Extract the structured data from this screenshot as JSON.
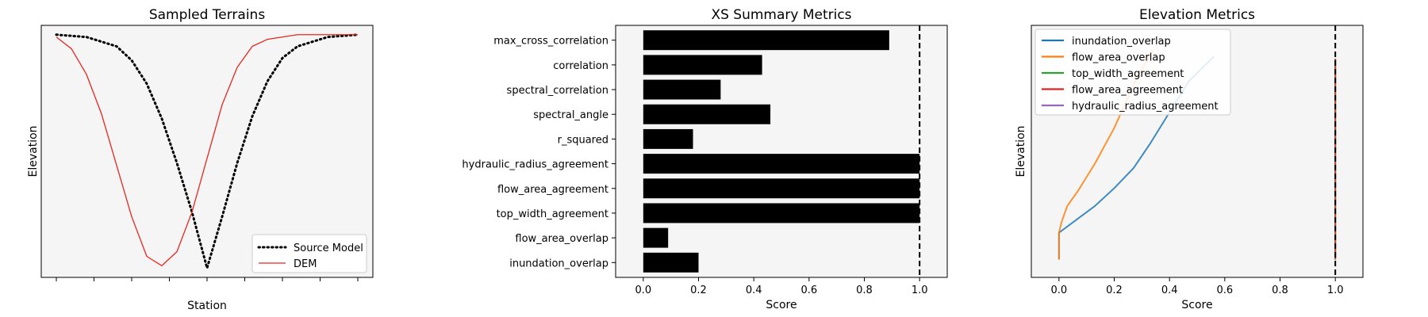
{
  "chart_data": [
    {
      "type": "line",
      "title": "Sampled Terrains",
      "xlabel": "Station",
      "ylabel": "Elevation",
      "x_ticks_labeled": false,
      "y_ticks_labeled": false,
      "xlim": [
        -0.05,
        1.05
      ],
      "ylim": [
        -0.04,
        1.04
      ],
      "legend": "lower-right",
      "series": [
        {
          "name": "Source Model",
          "color": "#000000",
          "style": "dotted",
          "x": [
            0,
            0.1,
            0.2,
            0.25,
            0.3,
            0.35,
            0.4,
            0.45,
            0.5,
            0.55,
            0.6,
            0.65,
            0.7,
            0.75,
            0.8,
            0.9,
            1.0
          ],
          "y": [
            1.0,
            0.99,
            0.95,
            0.89,
            0.79,
            0.64,
            0.45,
            0.24,
            0.0,
            0.22,
            0.45,
            0.65,
            0.8,
            0.9,
            0.95,
            0.99,
            1.0
          ]
        },
        {
          "name": "DEM",
          "color": "#e8261f",
          "style": "solid",
          "x": [
            0,
            0.05,
            0.1,
            0.15,
            0.2,
            0.25,
            0.3,
            0.35,
            0.4,
            0.45,
            0.5,
            0.55,
            0.6,
            0.65,
            0.7,
            0.8,
            0.9,
            1.0
          ],
          "y": [
            0.99,
            0.94,
            0.83,
            0.66,
            0.44,
            0.22,
            0.05,
            0.01,
            0.07,
            0.24,
            0.47,
            0.7,
            0.86,
            0.95,
            0.98,
            1.0,
            1.0,
            1.0
          ]
        }
      ]
    },
    {
      "type": "bar",
      "orientation": "horizontal",
      "title": "XS Summary Metrics",
      "xlabel": "Score",
      "ylabel": "",
      "xlim": [
        -0.1,
        1.1
      ],
      "x_ticks": [
        "0.0",
        "0.2",
        "0.4",
        "0.6",
        "0.8",
        "1.0"
      ],
      "reference_line": 1.0,
      "bar_color": "#000000",
      "categories": [
        "inundation_overlap",
        "flow_area_overlap",
        "top_width_agreement",
        "flow_area_agreement",
        "hydraulic_radius_agreement",
        "r_squared",
        "spectral_angle",
        "spectral_correlation",
        "correlation",
        "max_cross_correlation"
      ],
      "values": [
        0.2,
        0.09,
        1.0,
        1.0,
        1.0,
        0.18,
        0.46,
        0.28,
        0.43,
        0.89
      ]
    },
    {
      "type": "line",
      "title": "Elevation Metrics",
      "xlabel": "Score",
      "ylabel": "Elevation",
      "xlim": [
        -0.1,
        1.1
      ],
      "ylim": [
        -0.08,
        1.05
      ],
      "x_ticks": [
        "0.0",
        "0.2",
        "0.4",
        "0.6",
        "0.8",
        "1.0"
      ],
      "y_ticks_labeled": false,
      "reference_line": 1.0,
      "legend": "top-left",
      "series": [
        {
          "name": "inundation_overlap",
          "color": "#1f77b4",
          "x": [
            0,
            0,
            0.13,
            0.2,
            0.27,
            0.33,
            0.4,
            0.47,
            0.56
          ],
          "y": [
            0,
            0.12,
            0.24,
            0.32,
            0.41,
            0.52,
            0.66,
            0.8,
            0.91
          ]
        },
        {
          "name": "flow_area_overlap",
          "color": "#ff7f0e",
          "x": [
            0,
            0,
            0.01,
            0.03,
            0.07,
            0.13,
            0.2,
            0.28,
            0.34
          ],
          "y": [
            0,
            0.12,
            0.17,
            0.24,
            0.31,
            0.43,
            0.59,
            0.81,
            0.94
          ]
        },
        {
          "name": "top_width_agreement",
          "color": "#2ca02c",
          "x": [
            1.0,
            1.0
          ],
          "y": [
            0,
            0.9
          ]
        },
        {
          "name": "flow_area_agreement",
          "color": "#d62728",
          "x": [
            1.0,
            1.0
          ],
          "y": [
            0,
            0.9
          ]
        },
        {
          "name": "hydraulic_radius_agreement",
          "color": "#9467bd",
          "x": [],
          "y": []
        }
      ]
    }
  ]
}
